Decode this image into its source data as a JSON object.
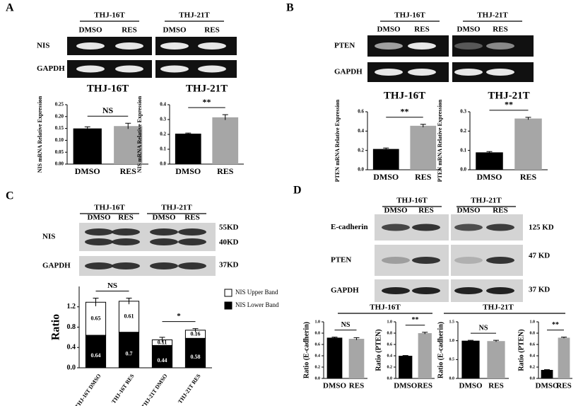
{
  "panel_labels": [
    "A",
    "B",
    "C",
    "D"
  ],
  "blots": [
    {
      "groups": [
        "THJ-16T",
        "THJ-21T"
      ],
      "lanes": [
        "DMSO",
        "RES",
        "DMSO",
        "RES"
      ],
      "rows": [
        "NIS",
        "GAPDH"
      ]
    },
    {
      "groups": [
        "THJ-16T",
        "THJ-21T"
      ],
      "lanes": [
        "DMSO",
        "RES",
        "DMSO",
        "RES"
      ],
      "rows": [
        "PTEN",
        "GAPDH"
      ]
    },
    {
      "groups": [
        "THJ-16T",
        "THJ-21T"
      ],
      "lanes": [
        "DMSO",
        "RES",
        "DMSO",
        "RES"
      ],
      "rows": [
        "NIS",
        "GAPDH"
      ],
      "markers": [
        "55KD",
        "40KD",
        "37KD"
      ]
    },
    {
      "groups": [
        "THJ-16T",
        "THJ-21T"
      ],
      "lanes": [
        "DMSO",
        "RES",
        "DMSO",
        "RES"
      ],
      "rows": [
        "E-cadherin",
        "PTEN",
        "GAPDH"
      ],
      "markers": [
        "125 KD",
        "47 KD",
        "37 KD"
      ],
      "chart_groups": [
        "THJ-16T",
        "THJ-21T"
      ]
    }
  ],
  "chart_data": [
    {
      "type": "bar",
      "title": "THJ-16T",
      "ylabel": "NIS mRNA Relative Expression",
      "categories": [
        "DMSO",
        "RES"
      ],
      "values": [
        0.15,
        0.16
      ],
      "errors": [
        0.007,
        0.012
      ],
      "colors": [
        "#000000",
        "#a6a6a6"
      ],
      "ylim": [
        0,
        0.25
      ],
      "yticks": [
        {
          "value": 0,
          "label": "0.00"
        },
        0.05,
        {
          "value": 0.1,
          "label": "0.10"
        },
        0.15,
        {
          "value": 0.2,
          "label": "0.20"
        },
        0.25
      ],
      "annotation": "NS"
    },
    {
      "type": "bar",
      "title": "THJ-21T",
      "ylabel": "NIS mRNA Relative Expression",
      "categories": [
        "DMSO",
        "RES"
      ],
      "values": [
        0.205,
        0.315
      ],
      "errors": [
        0.004,
        0.018
      ],
      "colors": [
        "#000000",
        "#a6a6a6"
      ],
      "ylim": [
        0,
        0.4
      ],
      "yticks": [
        {
          "value": 0,
          "label": "0.0"
        },
        0.1,
        0.2,
        0.3,
        0.4
      ],
      "annotation": "**"
    },
    {
      "type": "bar",
      "title": "THJ-16T",
      "ylabel": "PTEN mRNA Relative Expression",
      "categories": [
        "DMSO",
        "RES"
      ],
      "values": [
        0.215,
        0.455
      ],
      "errors": [
        0.01,
        0.015
      ],
      "colors": [
        "#000000",
        "#a6a6a6"
      ],
      "ylim": [
        0,
        0.6
      ],
      "yticks": [
        {
          "value": 0,
          "label": "0.0"
        },
        0.2,
        0.4,
        0.6
      ],
      "annotation": "**"
    },
    {
      "type": "bar",
      "title": "THJ-21T",
      "ylabel": "PTEN mRNA Relative Expression",
      "categories": [
        "DMSO",
        "RES"
      ],
      "values": [
        0.09,
        0.265
      ],
      "errors": [
        0.004,
        0.006
      ],
      "colors": [
        "#000000",
        "#a6a6a6"
      ],
      "ylim": [
        0,
        0.3
      ],
      "yticks": [
        {
          "value": 0,
          "label": "0.0"
        },
        0.1,
        0.2,
        0.3
      ],
      "annotation": "**"
    },
    {
      "type": "stacked_bar",
      "ylabel": "Ratio",
      "categories": [
        "THJ-16T DMSO",
        "THJ-16T RES",
        "THJ-21T DMSO",
        "THJ-21T RES"
      ],
      "series": [
        {
          "name": "NIS Lower Band",
          "color": "#000000",
          "values": [
            0.64,
            0.7,
            0.44,
            0.58
          ],
          "errors": [
            0.1,
            0.07,
            0.04,
            0.05
          ]
        },
        {
          "name": "NIS Upper Band",
          "color": "#ffffff",
          "values": [
            0.65,
            0.61,
            0.11,
            0.16
          ],
          "errors": [
            0.08,
            0.06,
            0.05,
            0.03
          ]
        }
      ],
      "ylim": [
        0,
        1.6
      ],
      "yticks": [
        {
          "value": 0,
          "label": "0.0"
        },
        0.4,
        0.8,
        1.2
      ],
      "annotations": [
        "NS",
        "*"
      ]
    },
    {
      "type": "bar",
      "ylabel": "Ratio (E-cadherin)",
      "categories": [
        "DMSO",
        "RES"
      ],
      "values": [
        0.72,
        0.7
      ],
      "errors": [
        0.01,
        0.02
      ],
      "colors": [
        "#000000",
        "#a6a6a6"
      ],
      "ylim": [
        0,
        1
      ],
      "yticks": [
        {
          "value": 0,
          "label": "0.0"
        },
        0.2,
        0.4,
        0.6,
        0.8,
        {
          "value": 1,
          "label": "1.0"
        }
      ],
      "annotation": "NS"
    },
    {
      "type": "bar",
      "ylabel": "Ratio (PTEN)",
      "categories": [
        "DMSO",
        "RES"
      ],
      "values": [
        0.4,
        0.8
      ],
      "errors": [
        0.005,
        0.015
      ],
      "colors": [
        "#000000",
        "#a6a6a6"
      ],
      "ylim": [
        0,
        1
      ],
      "yticks": [
        {
          "value": 0,
          "label": "0.0"
        },
        0.2,
        0.4,
        0.6,
        0.8,
        {
          "value": 1,
          "label": "1.0"
        }
      ],
      "annotation": "**"
    },
    {
      "type": "bar",
      "ylabel": "Ratio (E-cadherin)",
      "categories": [
        "DMSO",
        "RES"
      ],
      "values": [
        1.0,
        0.99
      ],
      "errors": [
        0.01,
        0.02
      ],
      "colors": [
        "#000000",
        "#a6a6a6"
      ],
      "ylim": [
        0,
        1.5
      ],
      "yticks": [
        {
          "value": 0,
          "label": "0.0"
        },
        0.5,
        {
          "value": 1,
          "label": "1.0"
        },
        1.5
      ],
      "annotation": "NS"
    },
    {
      "type": "bar",
      "ylabel": "Ratio (PTEN)",
      "categories": [
        "DMSO",
        "RES"
      ],
      "values": [
        0.15,
        0.72
      ],
      "errors": [
        0.005,
        0.01
      ],
      "colors": [
        "#000000",
        "#a6a6a6"
      ],
      "ylim": [
        0,
        1
      ],
      "yticks": [
        {
          "value": 0,
          "label": "0.0"
        },
        0.2,
        0.4,
        0.6,
        0.8,
        {
          "value": 1,
          "label": "1.0"
        }
      ],
      "annotation": "**"
    }
  ]
}
